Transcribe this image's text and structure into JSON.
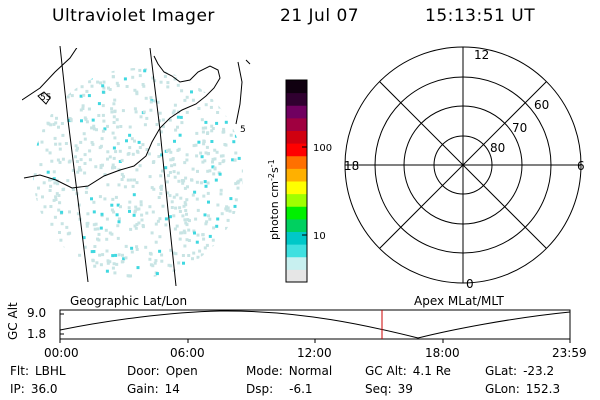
{
  "header": {
    "instrument": "Ultraviolet Imager",
    "date": "21 Jul 07",
    "time": "15:13:51 UT"
  },
  "geo_panel": {
    "title": "Geographic Lat/Lon",
    "map_labels": [
      "55",
      "5"
    ]
  },
  "colorbar": {
    "unit_label": "photon cm",
    "unit_sup1": "-2",
    "unit_mid": "s",
    "unit_sup2": "-1",
    "tick_labels": [
      "100",
      "10"
    ],
    "colors": [
      "#e6e6e6",
      "#c8f0f0",
      "#40e0e0",
      "#00c8c8",
      "#00d060",
      "#00f000",
      "#a0ff00",
      "#ffff00",
      "#ffb000",
      "#ff7000",
      "#ff0000",
      "#d00010",
      "#a00040",
      "#700060",
      "#300030",
      "#100010"
    ]
  },
  "polar_panel": {
    "title": "Apex MLat/MLT",
    "mlt_labels": {
      "top": "12",
      "right": "6",
      "bottom": "0",
      "left": "18"
    },
    "mlat_labels": [
      "60",
      "70",
      "80"
    ]
  },
  "timeline": {
    "ylabel": "GC Alt",
    "yticks": [
      "9.0",
      "1.8"
    ],
    "xticks": [
      "00:00",
      "06:00",
      "12:00",
      "18:00",
      "23:59"
    ],
    "marker_time": "15:13"
  },
  "status": {
    "flt_label": "Flt:",
    "flt_value": "LBHL",
    "ip_label": "IP:",
    "ip_value": "36.0",
    "door_label": "Door:",
    "door_value": "Open",
    "gain_label": "Gain:",
    "gain_value": "14",
    "mode_label": "Mode:",
    "mode_value": "Normal",
    "dsp_label": "Dsp:",
    "dsp_value": "-6.1",
    "gcalt_label": "GC Alt:",
    "gcalt_value": "4.1 Re",
    "seq_label": "Seq:",
    "seq_value": "39",
    "glat_label": "GLat:",
    "glat_value": "-23.2",
    "glon_label": "GLon:",
    "glon_value": "152.3"
  },
  "colors": {
    "ink": "#000000",
    "marker": "#cc0000",
    "speckle_a": "#c8e4e4",
    "speckle_b": "#40d8e0"
  }
}
